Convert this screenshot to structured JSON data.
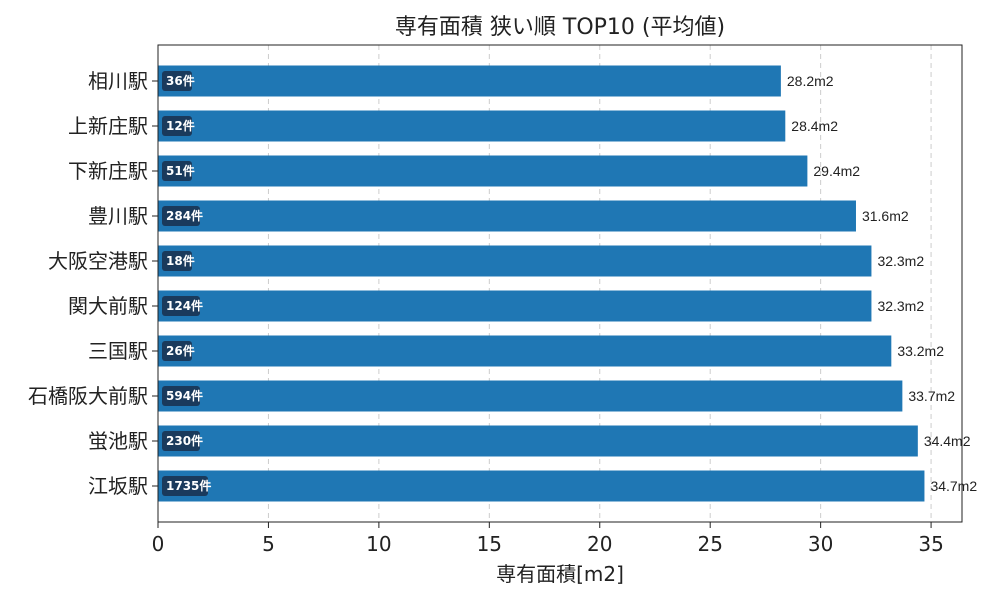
{
  "chart_data": {
    "type": "bar",
    "orientation": "horizontal",
    "title": "専有面積 狭い順 TOP10 (平均値)",
    "xlabel": "専有面積[m2]",
    "ylabel": "",
    "xlim": [
      0,
      36.4
    ],
    "xticks": [
      0,
      5,
      10,
      15,
      20,
      25,
      30,
      35
    ],
    "grid": "x-dashed",
    "bar_color": "#1f77b4",
    "count_badge_color": "#1a3a5c",
    "categories": [
      "相川駅",
      "上新庄駅",
      "下新庄駅",
      "豊川駅",
      "大阪空港駅",
      "関大前駅",
      "三国駅",
      "石橋阪大前駅",
      "蛍池駅",
      "江坂駅"
    ],
    "values": [
      28.2,
      28.4,
      29.4,
      31.6,
      32.3,
      32.3,
      33.2,
      33.7,
      34.4,
      34.7
    ],
    "value_labels": [
      "28.2m2",
      "28.4m2",
      "29.4m2",
      "31.6m2",
      "32.3m2",
      "32.3m2",
      "33.2m2",
      "33.7m2",
      "34.4m2",
      "34.7m2"
    ],
    "count_labels": [
      "36件",
      "12件",
      "51件",
      "284件",
      "18件",
      "124件",
      "26件",
      "594件",
      "230件",
      "1735件"
    ]
  }
}
